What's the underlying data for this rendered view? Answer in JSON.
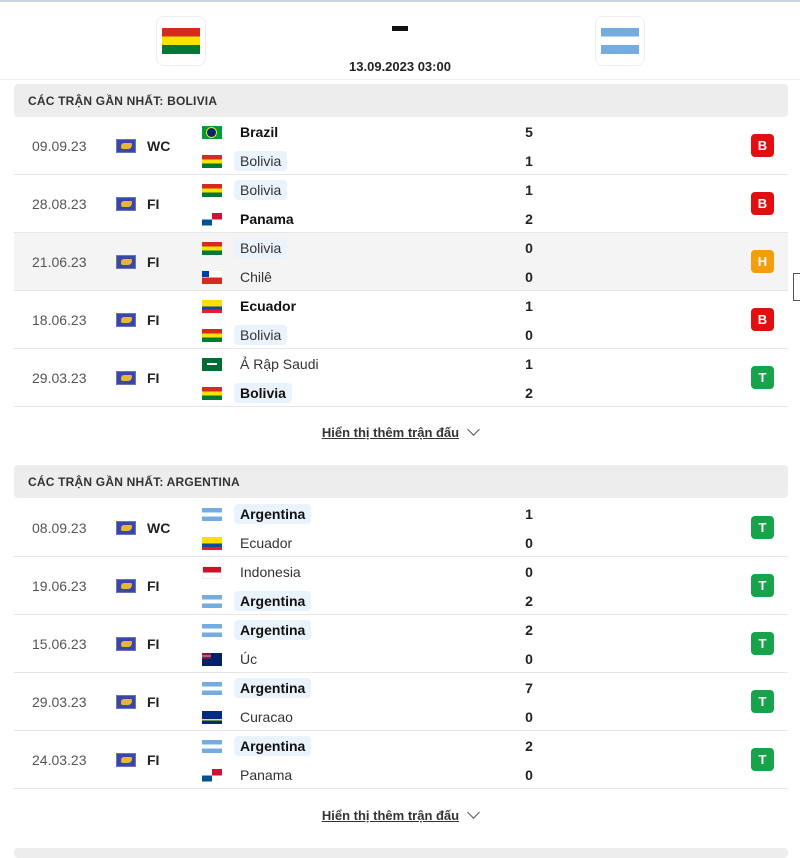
{
  "header": {
    "home_team": "Bolivia",
    "away_team": "Argentina",
    "score": "-",
    "datetime": "13.09.2023 03:00"
  },
  "colors": {
    "win": "#16a34a",
    "draw": "#f59e0b",
    "loss": "#e10f0f"
  },
  "sections": [
    {
      "title": "CÁC TRẬN GẦN NHẤT: BOLIVIA",
      "more_label": "Hiển thị thêm trận đấu",
      "matches": [
        {
          "date": "09.09.23",
          "comp": "WC",
          "home": "Brazil",
          "home_flag": "bra",
          "away": "Bolivia",
          "away_flag": "bol",
          "home_score": "5",
          "away_score": "1",
          "result": "B",
          "focus": "away"
        },
        {
          "date": "28.08.23",
          "comp": "FI",
          "home": "Bolivia",
          "home_flag": "bol",
          "away": "Panama",
          "away_flag": "pan",
          "home_score": "1",
          "away_score": "2",
          "result": "B",
          "focus": "home"
        },
        {
          "date": "21.06.23",
          "comp": "FI",
          "home": "Bolivia",
          "home_flag": "bol",
          "away": "Chilê",
          "away_flag": "chi",
          "home_score": "0",
          "away_score": "0",
          "result": "H",
          "focus": "home"
        },
        {
          "date": "18.06.23",
          "comp": "FI",
          "home": "Ecuador",
          "home_flag": "ecu",
          "away": "Bolivia",
          "away_flag": "bol",
          "home_score": "1",
          "away_score": "0",
          "result": "B",
          "focus": "away"
        },
        {
          "date": "29.03.23",
          "comp": "FI",
          "home": "Ả Rập Saudi",
          "home_flag": "ksa",
          "away": "Bolivia",
          "away_flag": "bol",
          "home_score": "1",
          "away_score": "2",
          "result": "T",
          "focus": "away"
        }
      ]
    },
    {
      "title": "CÁC TRẬN GẦN NHẤT: ARGENTINA",
      "more_label": "Hiển thị thêm trận đấu",
      "matches": [
        {
          "date": "08.09.23",
          "comp": "WC",
          "home": "Argentina",
          "home_flag": "arg",
          "away": "Ecuador",
          "away_flag": "ecu",
          "home_score": "1",
          "away_score": "0",
          "result": "T",
          "focus": "home"
        },
        {
          "date": "19.06.23",
          "comp": "FI",
          "home": "Indonesia",
          "home_flag": "ind",
          "away": "Argentina",
          "away_flag": "arg",
          "home_score": "0",
          "away_score": "2",
          "result": "T",
          "focus": "away"
        },
        {
          "date": "15.06.23",
          "comp": "FI",
          "home": "Argentina",
          "home_flag": "arg",
          "away": "Úc",
          "away_flag": "aus",
          "home_score": "2",
          "away_score": "0",
          "result": "T",
          "focus": "home"
        },
        {
          "date": "29.03.23",
          "comp": "FI",
          "home": "Argentina",
          "home_flag": "arg",
          "away": "Curacao",
          "away_flag": "cur",
          "home_score": "7",
          "away_score": "0",
          "result": "T",
          "focus": "home"
        },
        {
          "date": "24.03.23",
          "comp": "FI",
          "home": "Argentina",
          "home_flag": "arg",
          "away": "Panama",
          "away_flag": "pan",
          "home_score": "2",
          "away_score": "0",
          "result": "T",
          "focus": "home"
        }
      ]
    }
  ]
}
